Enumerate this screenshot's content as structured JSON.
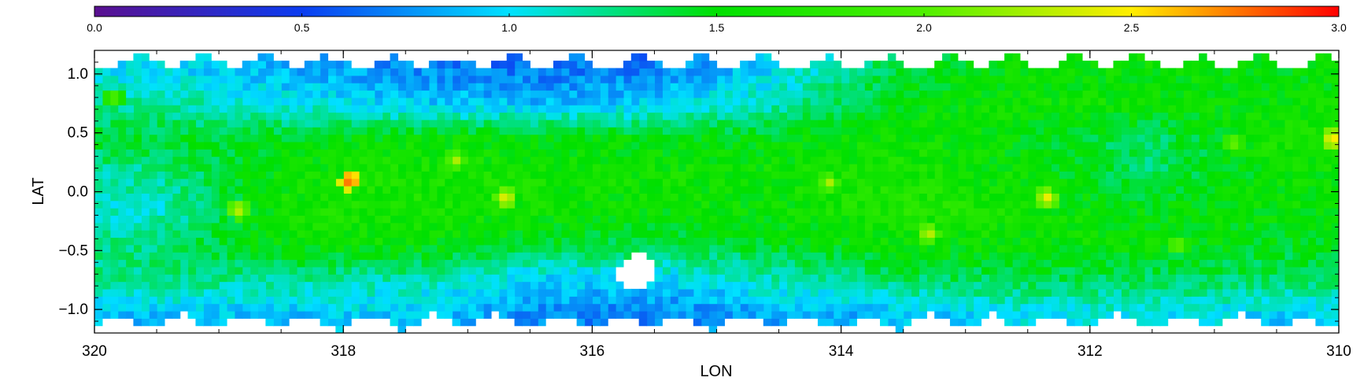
{
  "chart_data": {
    "type": "heatmap",
    "title": "",
    "xlabel": "LON",
    "ylabel": "LAT",
    "xlim": [
      320,
      310
    ],
    "ylim": [
      -1.2,
      1.2
    ],
    "x_ticks": [
      320,
      318,
      316,
      314,
      312,
      310
    ],
    "x_tick_labels": [
      "320",
      "318",
      "316",
      "314",
      "312",
      "310"
    ],
    "y_ticks": [
      1.0,
      0.5,
      0.0,
      -0.5,
      -1.0
    ],
    "y_tick_labels": [
      "1.0",
      "0.5",
      "0.0",
      "−0.5",
      "−1.0"
    ],
    "colorbar": {
      "position": "top",
      "range": [
        0.0,
        3.0
      ],
      "colormap": "rainbow",
      "ticks": [
        0.0,
        0.5,
        1.0,
        1.5,
        2.0,
        2.5,
        3.0
      ],
      "tick_labels": [
        "0.0",
        "0.5",
        "1.0",
        "1.5",
        "2.0",
        "2.5",
        "3.0"
      ]
    },
    "colors": {
      "0.0": "#5a0f8f",
      "0.5": "#0b3cf0",
      "1.0": "#00e1ff",
      "1.5": "#00e000",
      "2.0": "#4ff000",
      "2.5": "#ffee00",
      "3.0": "#ff0000"
    },
    "grid": {
      "lon_step": 0.0625,
      "lat_step": 0.0625,
      "lon_range": [
        310,
        320
      ],
      "lat_range": [
        -1.2,
        1.2
      ]
    },
    "coarse_grid": {
      "lon_centers": [
        319.5,
        318.5,
        317.5,
        316.5,
        315.5,
        314.5,
        313.5,
        312.5,
        311.5,
        310.5
      ],
      "lat_centers": [
        1.05,
        0.75,
        0.45,
        0.15,
        -0.15,
        -0.45,
        -0.75,
        -1.05
      ],
      "values": [
        [
          1.0,
          0.85,
          0.75,
          0.65,
          0.7,
          1.0,
          1.4,
          1.55,
          1.55,
          1.5
        ],
        [
          1.2,
          1.05,
          0.95,
          0.9,
          0.95,
          1.15,
          1.5,
          1.6,
          1.55,
          1.55
        ],
        [
          1.4,
          1.45,
          1.55,
          1.55,
          1.5,
          1.5,
          1.6,
          1.5,
          1.3,
          1.65
        ],
        [
          1.2,
          1.55,
          1.65,
          1.6,
          1.6,
          1.6,
          1.65,
          1.55,
          1.3,
          1.55
        ],
        [
          1.1,
          1.6,
          1.65,
          1.6,
          1.55,
          1.55,
          1.7,
          1.6,
          1.5,
          1.55
        ],
        [
          1.25,
          1.55,
          1.55,
          1.45,
          1.35,
          1.45,
          1.55,
          1.55,
          1.55,
          1.45
        ],
        [
          1.25,
          1.2,
          1.15,
          0.95,
          0.95,
          1.15,
          1.3,
          1.35,
          1.3,
          1.3
        ],
        [
          0.9,
          0.9,
          0.95,
          0.75,
          0.7,
          0.8,
          0.9,
          1.0,
          1.05,
          0.95
        ]
      ]
    },
    "hotspots": [
      {
        "lon": 317.95,
        "lat": 0.1,
        "value": 2.9
      },
      {
        "lon": 318.85,
        "lat": -0.15,
        "value": 2.4
      },
      {
        "lon": 316.7,
        "lat": -0.05,
        "value": 2.5
      },
      {
        "lon": 317.1,
        "lat": 0.27,
        "value": 2.3
      },
      {
        "lon": 314.1,
        "lat": 0.08,
        "value": 2.3
      },
      {
        "lon": 313.3,
        "lat": -0.35,
        "value": 2.4
      },
      {
        "lon": 312.35,
        "lat": -0.05,
        "value": 2.5
      },
      {
        "lon": 311.3,
        "lat": -0.45,
        "value": 2.2
      },
      {
        "lon": 310.05,
        "lat": 0.45,
        "value": 2.6
      },
      {
        "lon": 310.85,
        "lat": 0.42,
        "value": 2.2
      },
      {
        "lon": 319.85,
        "lat": 0.8,
        "value": 2.1
      }
    ],
    "masked_region": {
      "lon": 315.65,
      "lat": -0.68,
      "radius_deg": 0.15
    }
  }
}
